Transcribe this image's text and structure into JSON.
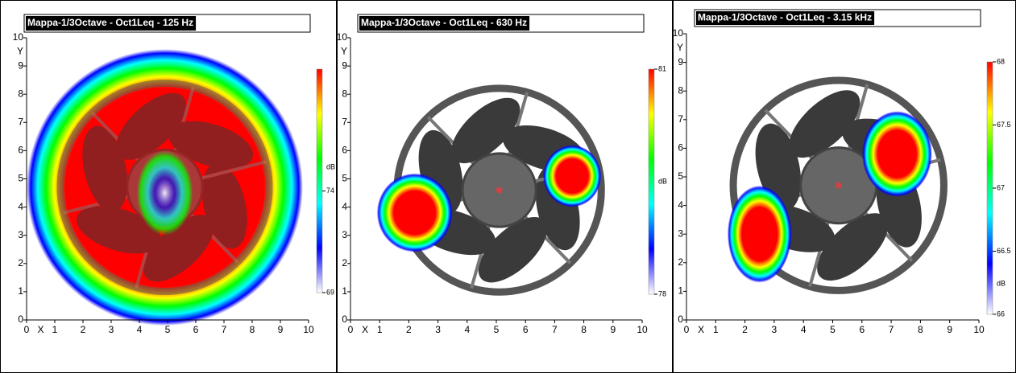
{
  "chart_data": [
    {
      "type": "heatmap",
      "title": "Mappa-1/3Octave - Oct1Leq - 125 Hz",
      "xlabel": "X",
      "ylabel": "Y",
      "xlim": [
        0,
        10
      ],
      "ylim": [
        0,
        10
      ],
      "xticks": [
        0,
        1,
        2,
        3,
        4,
        5,
        6,
        7,
        8,
        9,
        10
      ],
      "yticks": [
        0,
        1,
        2,
        3,
        4,
        5,
        6,
        7,
        8,
        9,
        10
      ],
      "colorbar": {
        "label": "dB",
        "lim": [
          69,
          80
        ],
        "ticks": [
          69,
          74
        ]
      },
      "colormap": [
        "#ffffff",
        "#0000ff",
        "#00ffff",
        "#00ff00",
        "#ffff00",
        "#ff0000"
      ]
    },
    {
      "type": "heatmap",
      "title": "Mappa-1/3Octave - Oct1Leq - 630 Hz",
      "xlabel": "X",
      "ylabel": "Y",
      "xlim": [
        0,
        10
      ],
      "ylim": [
        0,
        10
      ],
      "xticks": [
        0,
        1,
        2,
        3,
        4,
        5,
        6,
        7,
        8,
        9,
        10
      ],
      "yticks": [
        0,
        1,
        2,
        3,
        4,
        5,
        6,
        7,
        8,
        9,
        10
      ],
      "colorbar": {
        "label": "dB",
        "lim": [
          78,
          81
        ],
        "ticks": [
          78,
          81
        ]
      },
      "colormap": [
        "#ffffff",
        "#0000ff",
        "#00ffff",
        "#00ff00",
        "#ffff00",
        "#ff0000"
      ]
    },
    {
      "type": "heatmap",
      "title": "Mappa-1/3Octave - Oct1Leq - 3.15 kHz",
      "xlabel": "X",
      "ylabel": "Y",
      "xlim": [
        0,
        10
      ],
      "ylim": [
        0,
        10
      ],
      "xticks": [
        0,
        1,
        2,
        3,
        4,
        5,
        6,
        7,
        8,
        9,
        10
      ],
      "yticks": [
        0,
        1,
        2,
        3,
        4,
        5,
        6,
        7,
        8,
        9,
        10
      ],
      "colorbar": {
        "label": "dB",
        "lim": [
          66,
          68
        ],
        "ticks": [
          66,
          66.5,
          67,
          67.5,
          68
        ]
      },
      "colormap": [
        "#ffffff",
        "#0000ff",
        "#00ffff",
        "#00ff00",
        "#ffff00",
        "#ff0000"
      ]
    }
  ]
}
